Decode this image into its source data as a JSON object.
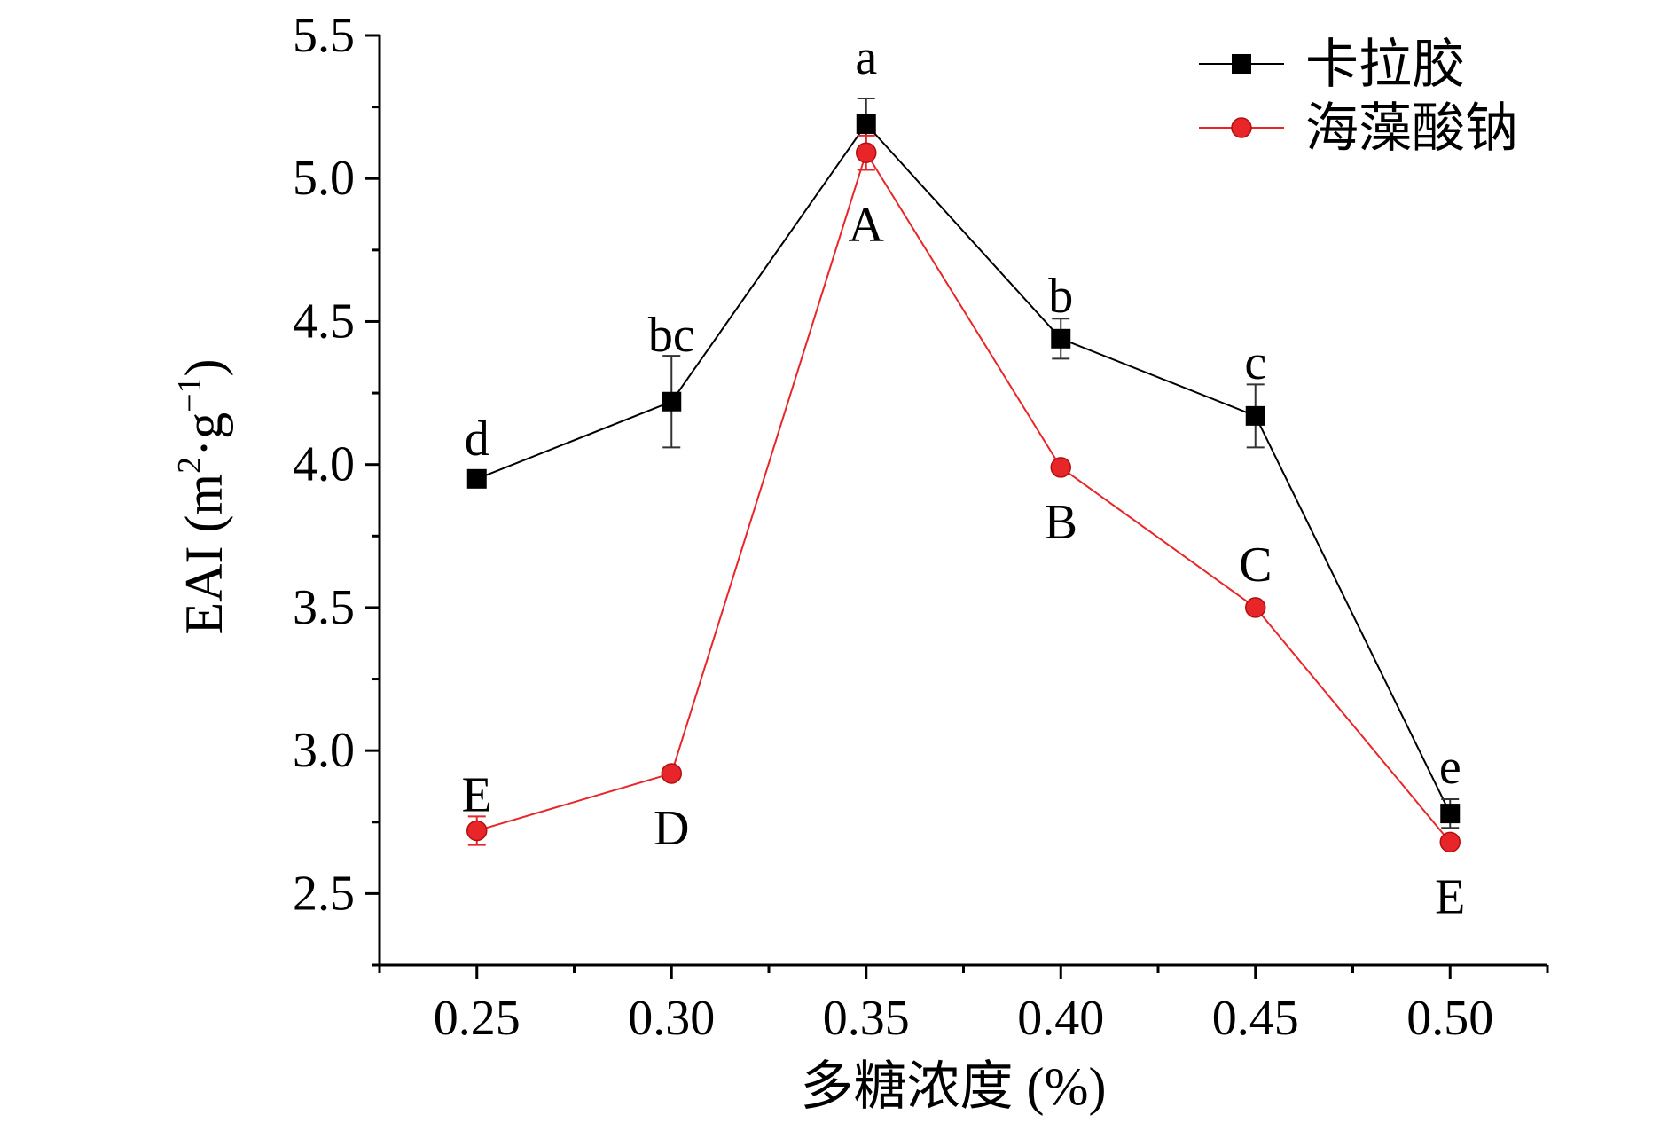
{
  "chart_data": {
    "type": "line",
    "xlabel": "多糖浓度 (%)",
    "ylabel": {
      "prefix": "EAI (m",
      "sup1": "2",
      "mid": "·g",
      "sup2": "−1",
      "suffix": ")"
    },
    "x": [
      0.25,
      0.3,
      0.35,
      0.4,
      0.45,
      0.5
    ],
    "x_tick_labels": [
      "0.25",
      "0.30",
      "0.35",
      "0.40",
      "0.45",
      "0.50"
    ],
    "xlim": [
      0.225,
      0.525
    ],
    "ylim": [
      2.25,
      5.5
    ],
    "y_ticks": [
      2.5,
      3.0,
      3.5,
      4.0,
      4.5,
      5.0,
      5.5
    ],
    "y_tick_labels": [
      "2.5",
      "3.0",
      "3.5",
      "4.0",
      "4.5",
      "5.0",
      "5.5"
    ],
    "grid": false,
    "legend_position": "top-right",
    "series": [
      {
        "name": "卡拉胶",
        "color": "#000000",
        "marker": "square",
        "values": [
          3.95,
          4.22,
          5.19,
          4.44,
          4.17,
          2.78
        ],
        "errors": [
          0.0,
          0.16,
          0.09,
          0.07,
          0.11,
          0.05
        ],
        "labels": [
          "d",
          "bc",
          "a",
          "b",
          "c",
          "e"
        ]
      },
      {
        "name": "海藻酸钠",
        "color": "#e8262a",
        "marker": "circle",
        "values": [
          2.72,
          2.92,
          5.09,
          3.99,
          3.5,
          2.68
        ],
        "errors": [
          0.05,
          0.0,
          0.06,
          0.0,
          0.0,
          0.0
        ],
        "labels": [
          "E",
          "D",
          "A",
          "B",
          "C",
          "E"
        ]
      }
    ]
  }
}
